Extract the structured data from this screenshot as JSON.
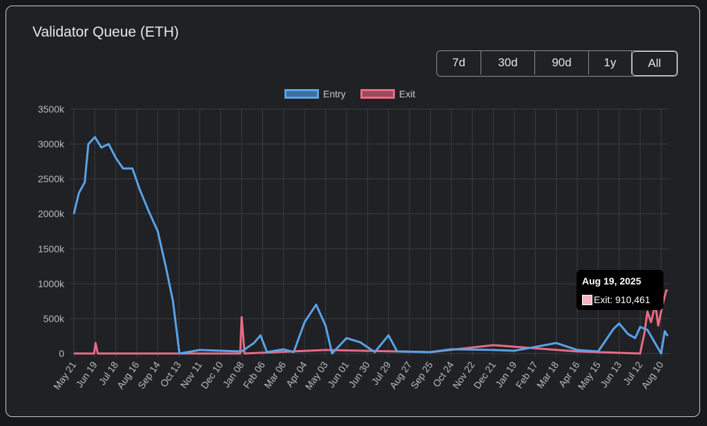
{
  "title": "Validator Queue (ETH)",
  "ranges": [
    {
      "label": "7d",
      "active": false
    },
    {
      "label": "30d",
      "active": false
    },
    {
      "label": "90d",
      "active": false
    },
    {
      "label": "1y",
      "active": false
    },
    {
      "label": "All",
      "active": true
    }
  ],
  "tooltip": {
    "title": "Aug 19, 2025",
    "body": "Exit: 910,461"
  },
  "chart_data": {
    "type": "line",
    "grid": true,
    "legend": "top",
    "ylim": [
      0,
      3500000
    ],
    "yticks": [
      "0",
      "500k",
      "1000k",
      "1500k",
      "2000k",
      "2500k",
      "3000k",
      "3500k"
    ],
    "xlim": [
      "2023-05-21",
      "2025-08-19"
    ],
    "xticks": [
      "May 21",
      "Jun 19",
      "Jul 18",
      "Aug 16",
      "Sep 14",
      "Oct 13",
      "Nov 11",
      "Dec 10",
      "Jan 08",
      "Feb 06",
      "Mar 06",
      "Apr 04",
      "May 03",
      "Jun 01",
      "Jun 30",
      "Jul 29",
      "Aug 27",
      "Sep 25",
      "Oct 24",
      "Nov 22",
      "Dec 21",
      "Jan 19",
      "Feb 17",
      "Mar 18",
      "Apr 16",
      "May 15",
      "Jun 13",
      "Jul 12",
      "Aug 10"
    ],
    "colors": {
      "Entry": "#5aa3e8",
      "Exit": "#e86b85"
    },
    "series": [
      {
        "name": "Entry",
        "points": [
          [
            "2023-05-21",
            2000000
          ],
          [
            "2023-05-28",
            2300000
          ],
          [
            "2023-06-05",
            2450000
          ],
          [
            "2023-06-10",
            3000000
          ],
          [
            "2023-06-19",
            3100000
          ],
          [
            "2023-06-28",
            2950000
          ],
          [
            "2023-07-08",
            3000000
          ],
          [
            "2023-07-18",
            2800000
          ],
          [
            "2023-07-28",
            2650000
          ],
          [
            "2023-08-10",
            2650000
          ],
          [
            "2023-08-20",
            2350000
          ],
          [
            "2023-09-01",
            2050000
          ],
          [
            "2023-09-14",
            1750000
          ],
          [
            "2023-09-25",
            1250000
          ],
          [
            "2023-10-05",
            750000
          ],
          [
            "2023-10-14",
            0
          ],
          [
            "2023-11-11",
            50000
          ],
          [
            "2023-12-10",
            40000
          ],
          [
            "2024-01-08",
            30000
          ],
          [
            "2024-01-25",
            150000
          ],
          [
            "2024-02-03",
            260000
          ],
          [
            "2024-02-12",
            20000
          ],
          [
            "2024-03-06",
            60000
          ],
          [
            "2024-03-20",
            20000
          ],
          [
            "2024-04-04",
            450000
          ],
          [
            "2024-04-20",
            700000
          ],
          [
            "2024-05-03",
            400000
          ],
          [
            "2024-05-12",
            0
          ],
          [
            "2024-06-01",
            220000
          ],
          [
            "2024-06-20",
            160000
          ],
          [
            "2024-07-10",
            20000
          ],
          [
            "2024-07-29",
            260000
          ],
          [
            "2024-08-10",
            30000
          ],
          [
            "2024-09-25",
            20000
          ],
          [
            "2024-10-24",
            60000
          ],
          [
            "2024-12-21",
            50000
          ],
          [
            "2025-01-19",
            40000
          ],
          [
            "2025-03-18",
            150000
          ],
          [
            "2025-04-16",
            50000
          ],
          [
            "2025-05-15",
            30000
          ],
          [
            "2025-06-05",
            350000
          ],
          [
            "2025-06-13",
            430000
          ],
          [
            "2025-06-25",
            280000
          ],
          [
            "2025-07-05",
            220000
          ],
          [
            "2025-07-12",
            380000
          ],
          [
            "2025-07-22",
            340000
          ],
          [
            "2025-08-01",
            160000
          ],
          [
            "2025-08-10",
            0
          ],
          [
            "2025-08-15",
            320000
          ],
          [
            "2025-08-19",
            250000
          ]
        ]
      },
      {
        "name": "Exit",
        "points": [
          [
            "2023-05-21",
            0
          ],
          [
            "2023-06-18",
            0
          ],
          [
            "2023-06-20",
            150000
          ],
          [
            "2023-06-23",
            0
          ],
          [
            "2024-01-06",
            0
          ],
          [
            "2024-01-08",
            520000
          ],
          [
            "2024-01-12",
            0
          ],
          [
            "2024-05-03",
            50000
          ],
          [
            "2024-09-25",
            20000
          ],
          [
            "2024-12-21",
            120000
          ],
          [
            "2025-04-16",
            30000
          ],
          [
            "2025-07-12",
            0
          ],
          [
            "2025-07-18",
            300000
          ],
          [
            "2025-07-22",
            600000
          ],
          [
            "2025-07-27",
            450000
          ],
          [
            "2025-08-02",
            700000
          ],
          [
            "2025-08-06",
            400000
          ],
          [
            "2025-08-12",
            700000
          ],
          [
            "2025-08-17",
            900000
          ],
          [
            "2025-08-19",
            910461
          ]
        ]
      }
    ]
  }
}
